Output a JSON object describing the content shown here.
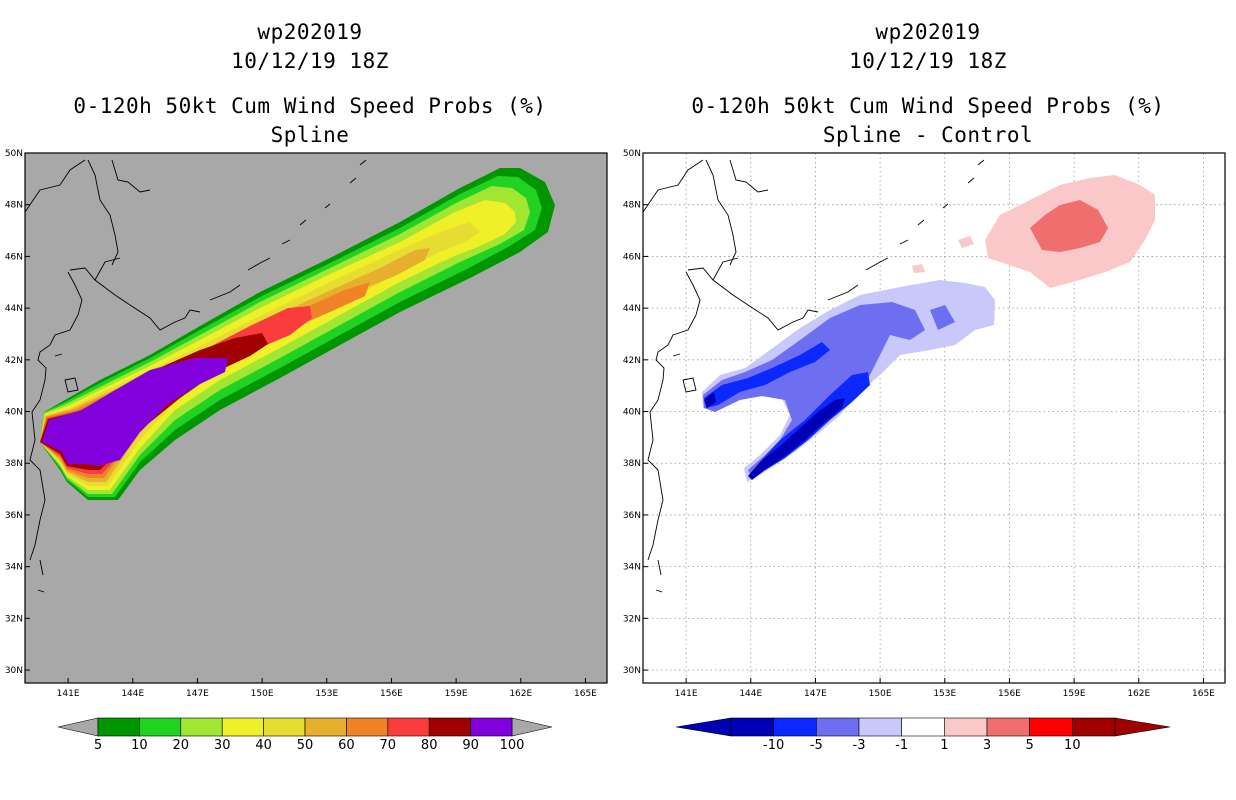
{
  "left_panel": {
    "storm_id": "wp202019",
    "datetime": "10/12/19 18Z",
    "product": "0-120h 50kt Cum Wind Speed Probs (%)",
    "subtitle": "Spline"
  },
  "right_panel": {
    "storm_id": "wp202019",
    "datetime": "10/12/19 18Z",
    "product": "0-120h 50kt Cum Wind Speed Probs (%)",
    "subtitle": "Spline - Control"
  },
  "map": {
    "lon_labels": [
      "141E",
      "144E",
      "147E",
      "150E",
      "153E",
      "156E",
      "159E",
      "162E",
      "165E"
    ],
    "lat_labels": [
      "30N",
      "32N",
      "34N",
      "36N",
      "38N",
      "40N",
      "42N",
      "44N",
      "46N",
      "48N",
      "50N"
    ],
    "lon_range": [
      139,
      166
    ],
    "lat_range": [
      29.5,
      50
    ]
  },
  "left_colorbar": {
    "colors": [
      "#009600",
      "#22d222",
      "#a0e632",
      "#f0f028",
      "#e6dc32",
      "#e6af2d",
      "#f08228",
      "#fa3c3c",
      "#a00000",
      "#8200dc"
    ],
    "labels": [
      "5",
      "10",
      "20",
      "30",
      "40",
      "50",
      "60",
      "70",
      "80",
      "90",
      "100"
    ],
    "background_color": "#a8a8a8"
  },
  "right_colorbar": {
    "colors": [
      "#0000b4",
      "#0a28ff",
      "#6e6ef0",
      "#c8c8fa",
      "#ffffff",
      "#fac8c8",
      "#f06e6e",
      "#ff0000",
      "#a00000"
    ],
    "labels": [
      "-10",
      "-5",
      "-3",
      "-1",
      "1",
      "3",
      "5",
      "10"
    ]
  }
}
